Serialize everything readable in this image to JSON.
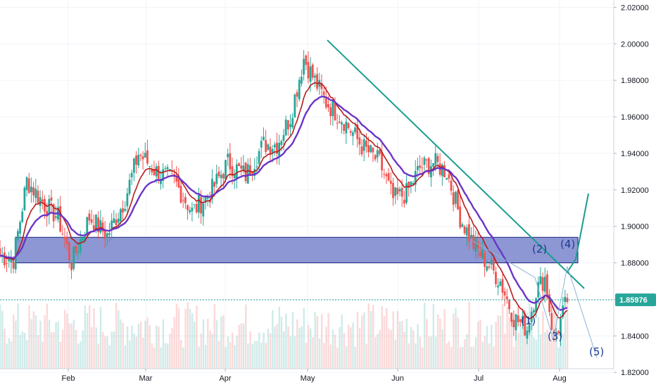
{
  "colors": {
    "up": "#26a69a",
    "down": "#ef5350",
    "ema_fast": "#b71c1c",
    "ema_slow": "#6a35c8",
    "trendline": "#1a9e8f",
    "zone_fill": "#5c6bc0",
    "zone_stroke": "#1a237e",
    "price_line": "#26a69a",
    "wave": "#1f3a93",
    "projection": "#8ab4d4"
  },
  "chart_data": {
    "type": "candlestick",
    "price_axis": {
      "ticks": [
        "2.02000",
        "2.00000",
        "1.98000",
        "1.96000",
        "1.94000",
        "1.92000",
        "1.90000",
        "1.88000",
        "1.86000",
        "1.84000",
        "1.82000"
      ],
      "min": 1.812,
      "max": 2.024
    },
    "time_axis": {
      "labels": [
        "Feb",
        "Mar",
        "Apr",
        "May",
        "Jun",
        "Jul",
        "Aug"
      ]
    },
    "current_price": "1.85976",
    "current_price_value": 1.85976,
    "resistance_zone": {
      "low": 1.88,
      "high": 1.894
    },
    "trendline": {
      "from": {
        "date": "May",
        "price": 2.002
      },
      "to": {
        "date": "Aug",
        "price": 1.866
      }
    },
    "wave_labels": [
      "(1)",
      "(2)",
      "(3)",
      "(4)",
      "(5)"
    ],
    "anchor_points": [
      {
        "i": 0,
        "p": 1.884
      },
      {
        "i": 6,
        "p": 1.882
      },
      {
        "i": 12,
        "p": 1.925
      },
      {
        "i": 20,
        "p": 1.912
      },
      {
        "i": 26,
        "p": 1.905
      },
      {
        "i": 32,
        "p": 1.88
      },
      {
        "i": 40,
        "p": 1.905
      },
      {
        "i": 48,
        "p": 1.895
      },
      {
        "i": 56,
        "p": 1.915
      },
      {
        "i": 62,
        "p": 1.94
      },
      {
        "i": 70,
        "p": 1.93
      },
      {
        "i": 78,
        "p": 1.925
      },
      {
        "i": 86,
        "p": 1.908
      },
      {
        "i": 94,
        "p": 1.918
      },
      {
        "i": 102,
        "p": 1.935
      },
      {
        "i": 110,
        "p": 1.928
      },
      {
        "i": 118,
        "p": 1.945
      },
      {
        "i": 124,
        "p": 1.945
      },
      {
        "i": 130,
        "p": 1.96
      },
      {
        "i": 136,
        "p": 1.992
      },
      {
        "i": 140,
        "p": 1.982
      },
      {
        "i": 146,
        "p": 1.968
      },
      {
        "i": 154,
        "p": 1.958
      },
      {
        "i": 162,
        "p": 1.944
      },
      {
        "i": 170,
        "p": 1.935
      },
      {
        "i": 176,
        "p": 1.915
      },
      {
        "i": 182,
        "p": 1.918
      },
      {
        "i": 188,
        "p": 1.932
      },
      {
        "i": 194,
        "p": 1.935
      },
      {
        "i": 200,
        "p": 1.93
      },
      {
        "i": 206,
        "p": 1.905
      },
      {
        "i": 212,
        "p": 1.89
      },
      {
        "i": 218,
        "p": 1.88
      },
      {
        "i": 224,
        "p": 1.87
      },
      {
        "i": 230,
        "p": 1.85
      },
      {
        "i": 236,
        "p": 1.844
      },
      {
        "i": 240,
        "p": 1.865
      },
      {
        "i": 244,
        "p": 1.872
      },
      {
        "i": 248,
        "p": 1.838
      },
      {
        "i": 251,
        "p": 1.848
      },
      {
        "i": 254,
        "p": 1.86
      }
    ],
    "n_candles": 255
  }
}
